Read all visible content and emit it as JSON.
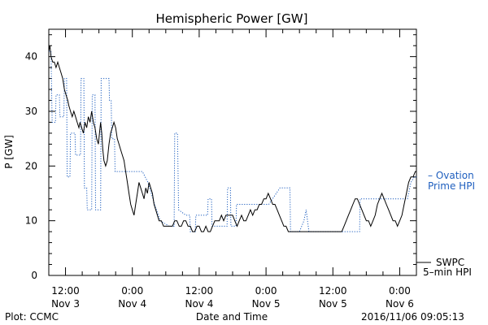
{
  "chart_data": {
    "type": "line",
    "title": "Hemispheric Power [GW]",
    "ylabel": "P [GW]",
    "xlabel": "Date and Time",
    "ylim": [
      0,
      45
    ],
    "yticks": [
      0,
      10,
      20,
      30,
      40
    ],
    "xlim_hours": [
      -3,
      63
    ],
    "xticks": [
      {
        "hour": 0,
        "label1": "12:00",
        "label2": "Nov 3"
      },
      {
        "hour": 12,
        "label1": "0:00",
        "label2": "Nov 4"
      },
      {
        "hour": 24,
        "label1": "12:00",
        "label2": "Nov 4"
      },
      {
        "hour": 36,
        "label1": "0:00",
        "label2": "Nov 5"
      },
      {
        "hour": 48,
        "label1": "12:00",
        "label2": "Nov 5"
      },
      {
        "hour": 60,
        "label1": "0:00",
        "label2": "Nov 6"
      }
    ],
    "series": [
      {
        "name": "Ovation Prime HPI",
        "legend_lines": [
          "– Ovation",
          "Prime HPI"
        ],
        "color": "#1f5fbf",
        "style": "dotted",
        "points": [
          [
            -3,
            41
          ],
          [
            -2.6,
            41
          ],
          [
            -2.4,
            28
          ],
          [
            -1.8,
            28
          ],
          [
            -1.7,
            33
          ],
          [
            -1.1,
            33
          ],
          [
            -1,
            29
          ],
          [
            -0.3,
            29
          ],
          [
            -0.2,
            36
          ],
          [
            0.2,
            36
          ],
          [
            0.3,
            18
          ],
          [
            0.8,
            18
          ],
          [
            0.9,
            26
          ],
          [
            1.7,
            26
          ],
          [
            1.8,
            22
          ],
          [
            2.7,
            22
          ],
          [
            2.8,
            36
          ],
          [
            3.3,
            36
          ],
          [
            3.4,
            16
          ],
          [
            3.8,
            16
          ],
          [
            3.9,
            12
          ],
          [
            4.7,
            12
          ],
          [
            4.8,
            33
          ],
          [
            5.3,
            33
          ],
          [
            5.4,
            12
          ],
          [
            6.3,
            12
          ],
          [
            6.4,
            36
          ],
          [
            7.8,
            36
          ],
          [
            7.9,
            32
          ],
          [
            8.2,
            32
          ],
          [
            8.3,
            25
          ],
          [
            8.8,
            25
          ],
          [
            8.9,
            19
          ],
          [
            13.8,
            19
          ],
          [
            14.8,
            17
          ],
          [
            16,
            13
          ],
          [
            17,
            10
          ],
          [
            18.6,
            9
          ],
          [
            19.5,
            9
          ],
          [
            19.6,
            26
          ],
          [
            20.1,
            26
          ],
          [
            20.3,
            12
          ],
          [
            21.6,
            11
          ],
          [
            22.3,
            11
          ],
          [
            22.4,
            8
          ],
          [
            23.3,
            8
          ],
          [
            23.4,
            11
          ],
          [
            25.5,
            11
          ],
          [
            25.6,
            14
          ],
          [
            26.2,
            14
          ],
          [
            26.3,
            9
          ],
          [
            29,
            9
          ],
          [
            29.1,
            16
          ],
          [
            29.6,
            16
          ],
          [
            29.7,
            9
          ],
          [
            30.6,
            9
          ],
          [
            30.7,
            13
          ],
          [
            36.5,
            13
          ],
          [
            38.5,
            16
          ],
          [
            40.3,
            16
          ],
          [
            40.4,
            8
          ],
          [
            42,
            8
          ],
          [
            42.8,
            10
          ],
          [
            43.2,
            12
          ],
          [
            43.7,
            8
          ],
          [
            52.8,
            8
          ],
          [
            52.9,
            14
          ],
          [
            60,
            14
          ],
          [
            61.4,
            14
          ],
          [
            62,
            17
          ],
          [
            62.6,
            18
          ],
          [
            63,
            18
          ]
        ]
      },
      {
        "name": "SWPC 5-min HPI",
        "legend_lines": [
          "SWPC",
          "5–min HPI"
        ],
        "color": "#000000",
        "style": "solid",
        "points": [
          [
            -3,
            41
          ],
          [
            -2.8,
            42
          ],
          [
            -2.6,
            40
          ],
          [
            -2.3,
            39
          ],
          [
            -2,
            39
          ],
          [
            -1.7,
            38
          ],
          [
            -1.4,
            39
          ],
          [
            -1.1,
            38
          ],
          [
            -0.8,
            37
          ],
          [
            -0.5,
            36
          ],
          [
            -0.2,
            34
          ],
          [
            0.1,
            33
          ],
          [
            0.4,
            32
          ],
          [
            0.6,
            31
          ],
          [
            0.9,
            30
          ],
          [
            1.2,
            29
          ],
          [
            1.5,
            30
          ],
          [
            1.8,
            29
          ],
          [
            2.1,
            28
          ],
          [
            2.4,
            27
          ],
          [
            2.6,
            28
          ],
          [
            2.9,
            27
          ],
          [
            3.2,
            26
          ],
          [
            3.5,
            28
          ],
          [
            3.8,
            27
          ],
          [
            4.1,
            29
          ],
          [
            4.4,
            28
          ],
          [
            4.7,
            30
          ],
          [
            5,
            28
          ],
          [
            5.3,
            27
          ],
          [
            5.6,
            25
          ],
          [
            5.9,
            24
          ],
          [
            6.1,
            26
          ],
          [
            6.3,
            28
          ],
          [
            6.5,
            26
          ],
          [
            6.7,
            23
          ],
          [
            6.9,
            21
          ],
          [
            7.2,
            20
          ],
          [
            7.5,
            21
          ],
          [
            7.8,
            24
          ],
          [
            8.1,
            26
          ],
          [
            8.4,
            27
          ],
          [
            8.7,
            28
          ],
          [
            9,
            27
          ],
          [
            9.3,
            25
          ],
          [
            9.6,
            24
          ],
          [
            9.9,
            23
          ],
          [
            10.2,
            22
          ],
          [
            10.5,
            21
          ],
          [
            10.8,
            19
          ],
          [
            11.1,
            17
          ],
          [
            11.4,
            15
          ],
          [
            11.7,
            13
          ],
          [
            12,
            12
          ],
          [
            12.3,
            11
          ],
          [
            12.6,
            13
          ],
          [
            12.9,
            15
          ],
          [
            13.2,
            17
          ],
          [
            13.5,
            16
          ],
          [
            13.8,
            15
          ],
          [
            14.1,
            14
          ],
          [
            14.4,
            16
          ],
          [
            14.7,
            15
          ],
          [
            15,
            17
          ],
          [
            15.3,
            16
          ],
          [
            15.6,
            15
          ],
          [
            15.9,
            13
          ],
          [
            16.2,
            12
          ],
          [
            16.5,
            11
          ],
          [
            16.8,
            10
          ],
          [
            17.2,
            10
          ],
          [
            17.6,
            9
          ],
          [
            18,
            9
          ],
          [
            18.4,
            9
          ],
          [
            18.8,
            9
          ],
          [
            19.2,
            9
          ],
          [
            19.6,
            10
          ],
          [
            20,
            10
          ],
          [
            20.4,
            9
          ],
          [
            20.8,
            9
          ],
          [
            21.2,
            10
          ],
          [
            21.6,
            10
          ],
          [
            22,
            9
          ],
          [
            22.4,
            9
          ],
          [
            22.8,
            8
          ],
          [
            23.2,
            8
          ],
          [
            23.6,
            9
          ],
          [
            24,
            9
          ],
          [
            24.4,
            8
          ],
          [
            24.8,
            8
          ],
          [
            25.2,
            9
          ],
          [
            25.6,
            8
          ],
          [
            26,
            8
          ],
          [
            26.4,
            9
          ],
          [
            26.8,
            10
          ],
          [
            27.2,
            10
          ],
          [
            27.6,
            10
          ],
          [
            28,
            11
          ],
          [
            28.4,
            10
          ],
          [
            28.8,
            11
          ],
          [
            29.2,
            11
          ],
          [
            29.6,
            11
          ],
          [
            30,
            11
          ],
          [
            30.4,
            10
          ],
          [
            30.8,
            9
          ],
          [
            31.2,
            10
          ],
          [
            31.6,
            11
          ],
          [
            32,
            10
          ],
          [
            32.4,
            10
          ],
          [
            32.8,
            11
          ],
          [
            33.2,
            12
          ],
          [
            33.6,
            11
          ],
          [
            34,
            12
          ],
          [
            34.4,
            12
          ],
          [
            34.8,
            13
          ],
          [
            35.2,
            13
          ],
          [
            35.6,
            14
          ],
          [
            36,
            14
          ],
          [
            36.4,
            15
          ],
          [
            36.8,
            14
          ],
          [
            37.2,
            13
          ],
          [
            37.6,
            13
          ],
          [
            38,
            12
          ],
          [
            38.4,
            11
          ],
          [
            38.8,
            10
          ],
          [
            39.2,
            9
          ],
          [
            39.6,
            9
          ],
          [
            40,
            8
          ],
          [
            40.6,
            8
          ],
          [
            42,
            8
          ],
          [
            44,
            8
          ],
          [
            46,
            8
          ],
          [
            48,
            8
          ],
          [
            49.6,
            8
          ],
          [
            50,
            9
          ],
          [
            50.4,
            10
          ],
          [
            50.8,
            11
          ],
          [
            51.2,
            12
          ],
          [
            51.6,
            13
          ],
          [
            52,
            14
          ],
          [
            52.4,
            14
          ],
          [
            52.8,
            13
          ],
          [
            53.2,
            12
          ],
          [
            53.6,
            11
          ],
          [
            54,
            10
          ],
          [
            54.4,
            10
          ],
          [
            54.8,
            9
          ],
          [
            55.2,
            10
          ],
          [
            55.6,
            11
          ],
          [
            56,
            13
          ],
          [
            56.4,
            14
          ],
          [
            56.8,
            15
          ],
          [
            57.2,
            14
          ],
          [
            57.6,
            13
          ],
          [
            58,
            12
          ],
          [
            58.4,
            11
          ],
          [
            58.8,
            10
          ],
          [
            59.2,
            10
          ],
          [
            59.6,
            9
          ],
          [
            60,
            10
          ],
          [
            60.4,
            11
          ],
          [
            60.8,
            13
          ],
          [
            61.2,
            15
          ],
          [
            61.6,
            17
          ],
          [
            62,
            18
          ],
          [
            62.4,
            18
          ],
          [
            62.8,
            19
          ],
          [
            63,
            19
          ]
        ]
      }
    ],
    "grid": false,
    "legend_position": "right",
    "legend_item_order": [
      "Ovation Prime HPI",
      "SWPC 5-min HPI"
    ]
  },
  "footer": {
    "plot_credit": "Plot: CCMC",
    "timestamp": "2016/11/06 09:05:13"
  }
}
